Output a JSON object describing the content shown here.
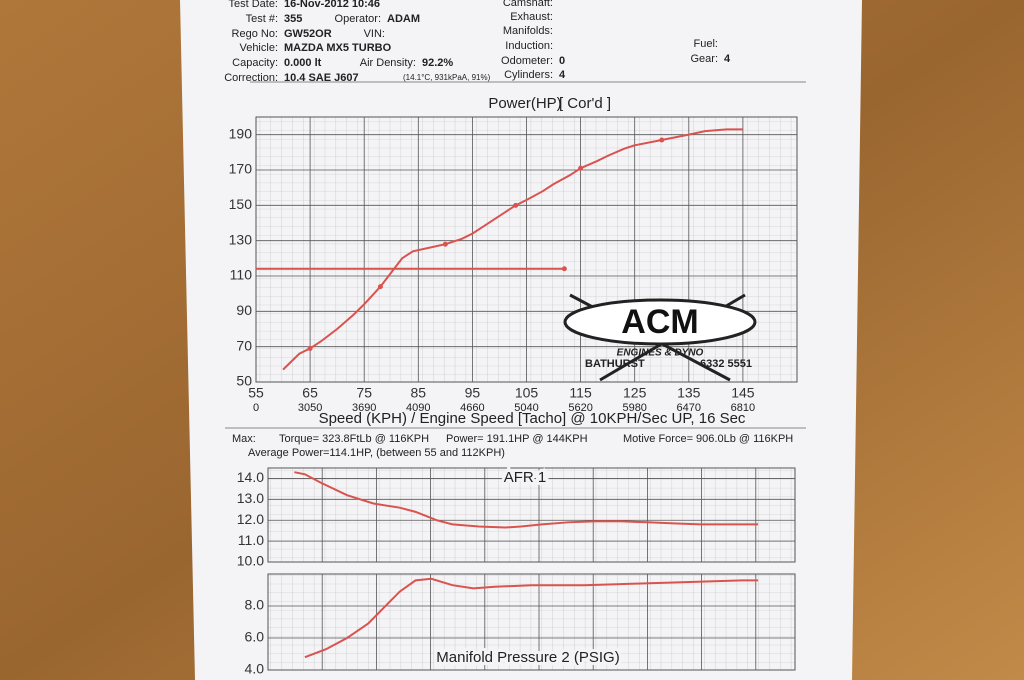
{
  "header": {
    "fields": [
      {
        "label": "Test Date:",
        "value": "16-Nov-2012 10:46"
      },
      {
        "label": "Test #:",
        "value": "355"
      },
      {
        "label": "Operator:",
        "value": "ADAM"
      },
      {
        "label": "Rego No:",
        "value": "GW52OR"
      },
      {
        "label": "VIN:"
      },
      {
        "label": "Vehicle:",
        "value": "MAZDA MX5 TURBO"
      },
      {
        "label": "Capacity:",
        "value": "0.000 lt"
      },
      {
        "label": "Air Density:",
        "value": "92.2%"
      },
      {
        "label": "Correction:",
        "value": "10.4 SAE J607"
      },
      {
        "label": "Camshaft:"
      },
      {
        "label": "Exhaust:"
      },
      {
        "label": "Manifolds:"
      },
      {
        "label": "Induction:"
      },
      {
        "label": "Odometer:",
        "value": "0"
      },
      {
        "label": "Cylinders:",
        "value": "4"
      },
      {
        "label": "Fuel:"
      },
      {
        "label": "Gear:",
        "value": "4"
      }
    ],
    "note": "(14.1°C, 931kPaA, 91%)"
  },
  "logo": {
    "name": "ACM",
    "sub": "ENGINES & DYNO",
    "town": "BATHURST",
    "phone": "6332 5551"
  },
  "summary": {
    "max": "Max:",
    "items": [
      "Torque= 323.8FtLb @ 116KPH",
      "Power= 191.1HP @ 144KPH",
      "Motive Force= 906.0Lb @ 116KPH"
    ],
    "average": "Average Power=114.1HP, (between 55 and 112KPH)"
  },
  "chart_data": [
    {
      "type": "line",
      "title": "Power(HP)",
      "subtitle": "[ Cor'd ]",
      "x_label": "Speed (KPH) / Engine Speed [Tacho] @ 10KPH/Sec UP, 16 Sec",
      "xlim": [
        55,
        155
      ],
      "ylim": [
        50,
        200
      ],
      "xticks": [
        55,
        65,
        75,
        85,
        95,
        105,
        115,
        125,
        135,
        145
      ],
      "x2ticks": [
        {
          "value": 55,
          "label": "0"
        },
        {
          "value": 65,
          "label": "3050"
        },
        {
          "value": 75,
          "label": "3690"
        },
        {
          "value": 85,
          "label": "4090"
        },
        {
          "value": 95,
          "label": "4660"
        },
        {
          "value": 105,
          "label": "5040"
        },
        {
          "value": 115,
          "label": "5620"
        },
        {
          "value": 125,
          "label": "5980"
        },
        {
          "value": 135,
          "label": "6470"
        },
        {
          "value": 145,
          "label": "6810"
        }
      ],
      "yticks": [
        50,
        70,
        90,
        110,
        130,
        150,
        170,
        190
      ],
      "grid": true,
      "series": [
        {
          "color": "#d9534f",
          "x": [
            60,
            63,
            65,
            67,
            70,
            73,
            75,
            78,
            80,
            82,
            84,
            87,
            90,
            93,
            95,
            97,
            100,
            103,
            105,
            108,
            110,
            113,
            115,
            118,
            120,
            123,
            125,
            130,
            135,
            138,
            142,
            145
          ],
          "values": [
            57,
            66,
            69,
            73,
            80,
            88,
            94,
            104,
            112,
            120,
            124,
            126,
            128,
            131,
            134,
            138,
            144,
            150,
            153,
            158,
            162,
            167,
            171,
            175,
            178,
            182,
            184,
            187,
            190,
            192,
            193,
            193
          ]
        },
        {
          "color": "#d9534f",
          "x": [
            55,
            112
          ],
          "values": [
            114.1,
            114.1
          ]
        }
      ]
    },
    {
      "type": "line",
      "title": "AFR 1",
      "xlim": [
        55,
        155
      ],
      "ylim": [
        10,
        14.5
      ],
      "yticks": [
        {
          "value": 10,
          "label": "10.0"
        },
        {
          "value": 11,
          "label": "11.0"
        },
        {
          "value": 12,
          "label": "12.0"
        },
        {
          "value": 13,
          "label": "13.0"
        },
        {
          "value": 14,
          "label": "14.0"
        }
      ],
      "grid": true,
      "series": [
        {
          "color": "#d9534f",
          "x": [
            60,
            62,
            65,
            70,
            75,
            80,
            83,
            87,
            90,
            95,
            100,
            103,
            107,
            112,
            117,
            122,
            127,
            132,
            137,
            142,
            145,
            148
          ],
          "values": [
            14.3,
            14.2,
            13.8,
            13.2,
            12.8,
            12.6,
            12.4,
            12.0,
            11.8,
            11.7,
            11.65,
            11.7,
            11.8,
            11.9,
            11.95,
            11.95,
            11.9,
            11.85,
            11.8,
            11.8,
            11.8,
            11.8
          ]
        }
      ]
    },
    {
      "type": "line",
      "title": "Manifold Pressure 2 (PSIG)",
      "xlim": [
        55,
        155
      ],
      "ylim": [
        4,
        10
      ],
      "yticks": [
        {
          "value": 4,
          "label": "4.0"
        },
        {
          "value": 6,
          "label": "6.0"
        },
        {
          "value": 8,
          "label": "8.0"
        }
      ],
      "grid": true,
      "series": [
        {
          "color": "#d9534f",
          "x": [
            62,
            66,
            70,
            74,
            77,
            80,
            83,
            86,
            90,
            94,
            98,
            105,
            115,
            125,
            135,
            145,
            148
          ],
          "values": [
            4.8,
            5.3,
            6.0,
            6.9,
            7.9,
            8.9,
            9.6,
            9.7,
            9.3,
            9.1,
            9.2,
            9.3,
            9.3,
            9.4,
            9.5,
            9.6,
            9.6
          ]
        }
      ]
    }
  ]
}
